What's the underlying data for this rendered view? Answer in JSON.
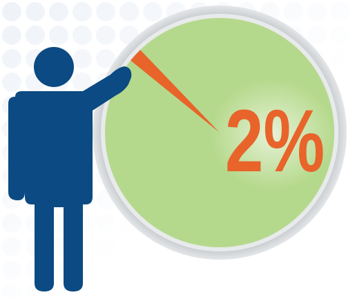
{
  "chart_data": {
    "type": "pie",
    "values": [
      2
    ],
    "value_labels": [
      "2%"
    ],
    "colors": [
      "#e8642a"
    ],
    "background_color": "#b5d98c"
  }
}
